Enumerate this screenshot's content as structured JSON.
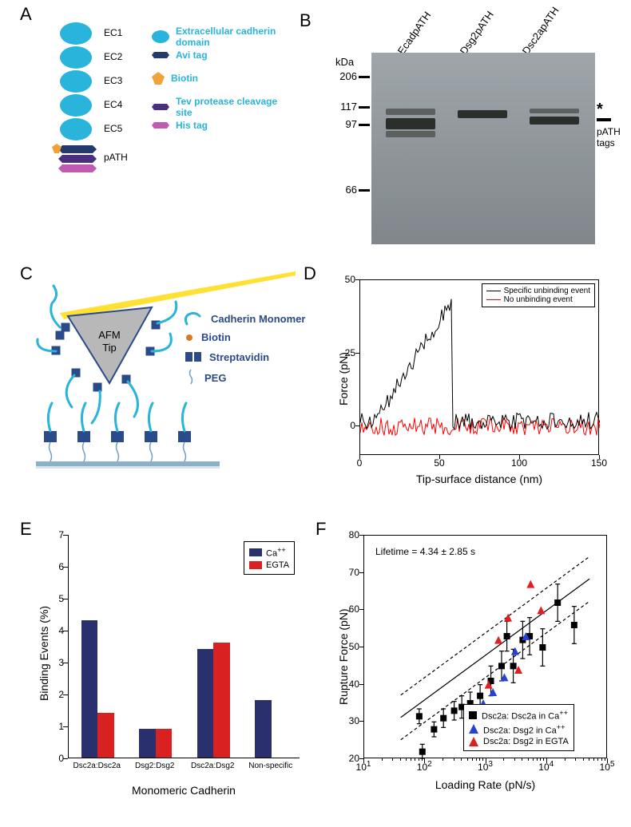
{
  "labels": {
    "A": "A",
    "B": "B",
    "C": "C",
    "D": "D",
    "E": "E",
    "F": "F"
  },
  "panelA": {
    "ec_labels": [
      "EC1",
      "EC2",
      "EC3",
      "EC4",
      "EC5"
    ],
    "path_label": "pATH",
    "legend": [
      {
        "key": "domain",
        "text": "Extracellular cadherin domain"
      },
      {
        "key": "avi",
        "text": "Avi tag"
      },
      {
        "key": "biotin",
        "text": "Biotin"
      },
      {
        "key": "tev",
        "text": "Tev protease cleavage site"
      },
      {
        "key": "his",
        "text": "His tag"
      }
    ],
    "colors": {
      "oval": "#29b4db",
      "avi": "#243a6a",
      "biotin": "#f2a23b",
      "tev": "#4a2f7f",
      "his": "#c05bb4"
    }
  },
  "panelB": {
    "lane_labels": [
      "EcadpATH",
      "Dsg2pATH",
      "Dsc2apATH"
    ],
    "mw_title": "kDa",
    "mw": [
      206,
      117,
      97,
      66
    ],
    "tag_label": "pATH tags",
    "asterisk": "*",
    "gel_top_color": "#9fa6ab",
    "gel_bottom_color": "#80878c",
    "band_color": "#2b2f2c"
  },
  "panelC": {
    "tip_label": "AFM\nTip",
    "legend": [
      {
        "key": "monomer",
        "text": "Cadherin Monomer"
      },
      {
        "key": "biotin",
        "text": "Biotin"
      },
      {
        "key": "strep",
        "text": "Streptavidin"
      },
      {
        "key": "peg",
        "text": "PEG"
      }
    ],
    "colors": {
      "tip_fill": "#b8b8b8",
      "tip_edge": "#2a4a8a",
      "lever": "#ffe135",
      "monomer": "#29b4db",
      "strep": "#2a4a8a",
      "biotin": "#d97b1f",
      "peg": "#6fa0c8",
      "surface": "#8cb0c6"
    }
  },
  "panelD": {
    "ylabel": "Force (pN)",
    "xlabel": "Tip-surface distance (nm)",
    "xmin": 0,
    "xmax": 150,
    "xticks": [
      0,
      50,
      100,
      150
    ],
    "ymin": -10,
    "ymax": 50,
    "yticks": [
      0,
      25,
      50
    ],
    "legend": [
      {
        "text": "Specific unbinding event",
        "color": "#000000"
      },
      {
        "text": "No unbinding event",
        "color": "#ff0000"
      }
    ],
    "black_peak_x": 58,
    "black_peak_y": 50,
    "colors": {
      "black": "#000000",
      "red": "#ff0000"
    }
  },
  "panelE": {
    "ylabel": "Binding Events (%)",
    "xlabel": "Monomeric Cadherin",
    "ymin": 0,
    "ymax": 7,
    "ystep": 1,
    "categories": [
      "Dsc2a:Dsc2a",
      "Dsg2:Dsg2",
      "Dsc2a:Dsg2",
      "Non-specific"
    ],
    "ca_values": [
      4.3,
      0.9,
      3.4,
      1.8
    ],
    "egta_values": [
      1.4,
      0.9,
      3.6,
      null
    ],
    "legend": [
      {
        "label": "Ca",
        "sup": "++",
        "color": "#2a2f6e"
      },
      {
        "label": "EGTA",
        "sup": "",
        "color": "#d92121"
      }
    ],
    "bar_width": 0.28,
    "colors": {
      "ca": "#2a2f6e",
      "egta": "#d92121"
    }
  },
  "panelF": {
    "ylabel": "Rupture Force (pN)",
    "xlabel": "Loading Rate (pN/s)",
    "xscale": "log",
    "xmin_exp": 1,
    "xmax_exp": 5,
    "xticks_exp": [
      1,
      2,
      3,
      4,
      5
    ],
    "ymin": 20,
    "ymax": 80,
    "yticks": [
      20,
      30,
      40,
      50,
      60,
      70,
      80
    ],
    "lifetime": "Lifetime = 4.34 ± 2.85 s",
    "legend": [
      {
        "label": "Dsc2a: Dsc2a in Ca",
        "sup": "++",
        "marker": "square",
        "color": "#000000"
      },
      {
        "label": "Dsc2a: Dsg2 in Ca",
        "sup": "++",
        "marker": "triangle",
        "color": "#2641d6"
      },
      {
        "label": "Dsc2a: Dsg2 in EGTA",
        "sup": "",
        "marker": "triangle",
        "color": "#e02020"
      }
    ],
    "points_black": [
      {
        "x": 80,
        "y": 31.5,
        "e": 2
      },
      {
        "x": 90,
        "y": 22,
        "e": 2
      },
      {
        "x": 140,
        "y": 28,
        "e": 2
      },
      {
        "x": 200,
        "y": 31,
        "e": 2.5
      },
      {
        "x": 300,
        "y": 33,
        "e": 2.5
      },
      {
        "x": 400,
        "y": 34,
        "e": 3
      },
      {
        "x": 550,
        "y": 35,
        "e": 3
      },
      {
        "x": 800,
        "y": 37,
        "e": 3
      },
      {
        "x": 1200,
        "y": 41,
        "e": 4
      },
      {
        "x": 1800,
        "y": 45,
        "e": 4
      },
      {
        "x": 2200,
        "y": 53,
        "e": 4
      },
      {
        "x": 2800,
        "y": 45,
        "e": 4.5
      },
      {
        "x": 4000,
        "y": 52,
        "e": 5
      },
      {
        "x": 5200,
        "y": 53,
        "e": 5
      },
      {
        "x": 8500,
        "y": 50,
        "e": 5
      },
      {
        "x": 15000,
        "y": 62,
        "e": 5
      },
      {
        "x": 28000,
        "y": 56,
        "e": 5
      }
    ],
    "points_blue": [
      {
        "x": 600,
        "y": 30
      },
      {
        "x": 900,
        "y": 35
      },
      {
        "x": 1300,
        "y": 38
      },
      {
        "x": 2000,
        "y": 42
      },
      {
        "x": 3000,
        "y": 49
      },
      {
        "x": 4500,
        "y": 53
      }
    ],
    "points_red": [
      {
        "x": 1100,
        "y": 40
      },
      {
        "x": 1600,
        "y": 52
      },
      {
        "x": 2300,
        "y": 58
      },
      {
        "x": 3400,
        "y": 44
      },
      {
        "x": 5400,
        "y": 67
      },
      {
        "x": 8000,
        "y": 60
      }
    ],
    "fit": {
      "intercept": 12,
      "slope_per_decade": 12
    },
    "colors": {
      "line": "#000000"
    }
  }
}
